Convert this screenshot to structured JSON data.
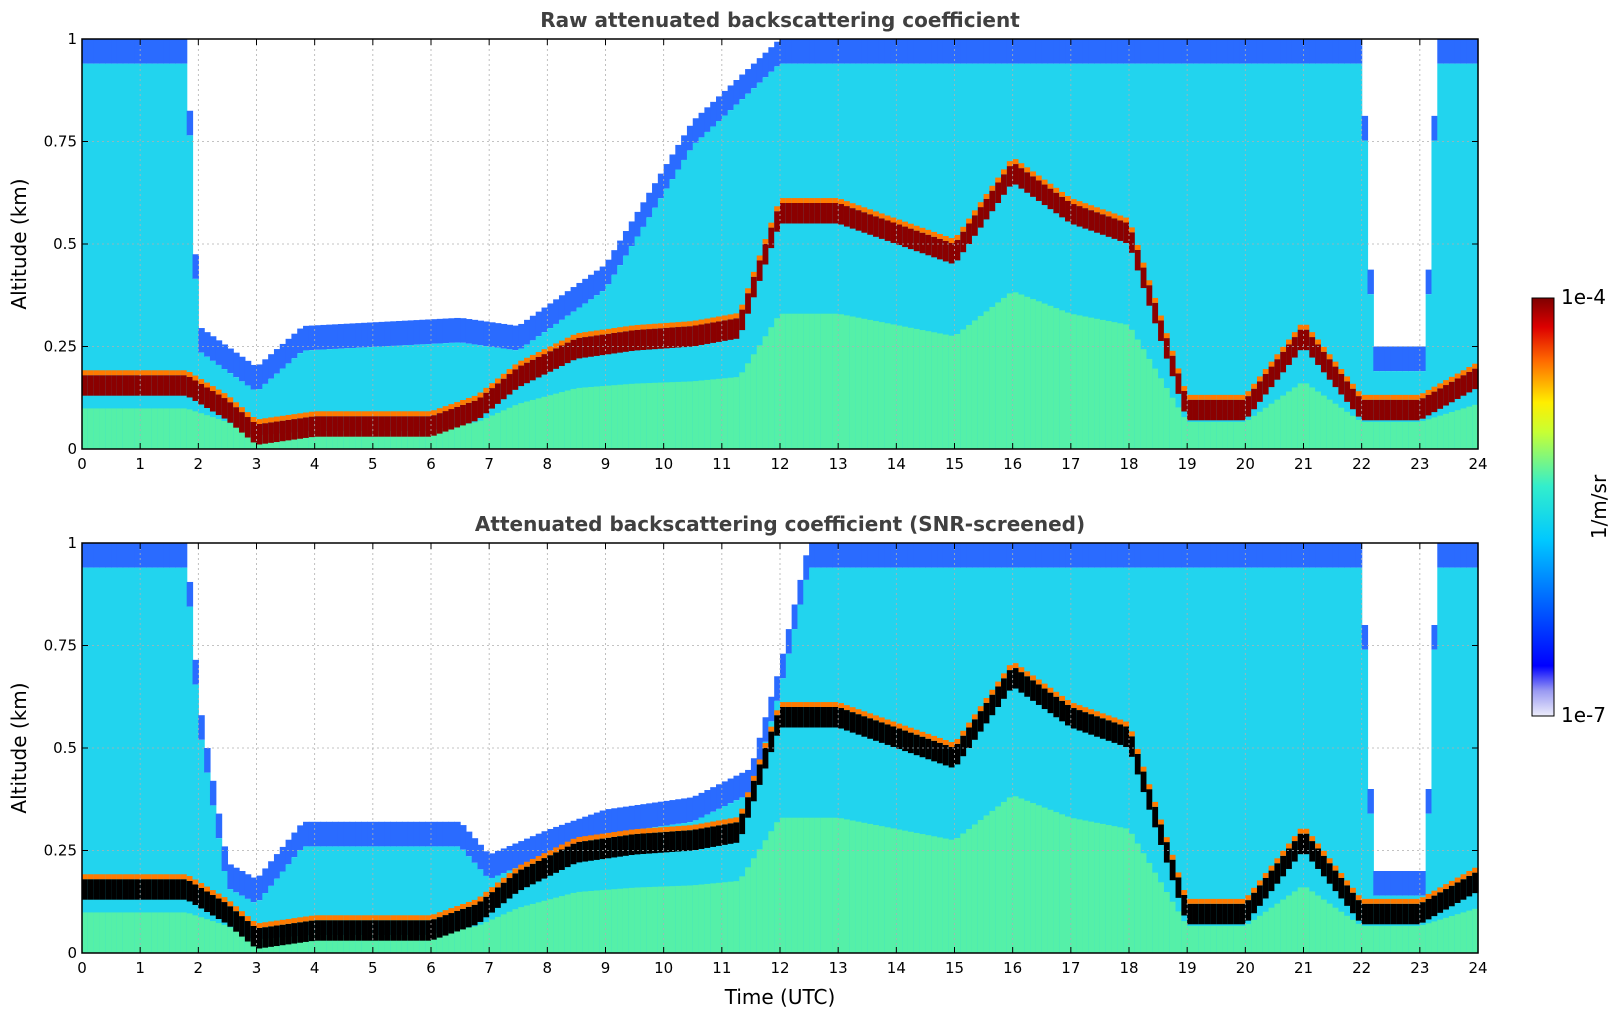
{
  "figure": {
    "colorbar": {
      "label": "1/m/sr",
      "max_label": "1e-4",
      "min_label": "1e-7",
      "scale": "log",
      "colormap": "jet",
      "range": [
        1e-07,
        0.0001
      ]
    },
    "shared_x_label": "Time (UTC)"
  },
  "chart_data": [
    {
      "type": "heatmap",
      "title": "Raw attenuated backscattering coefficient",
      "xlabel": "",
      "ylabel": "Altitude (km)",
      "xlim": [
        0,
        24
      ],
      "ylim": [
        0,
        1
      ],
      "x_ticks": [
        "0",
        "1",
        "2",
        "3",
        "4",
        "5",
        "6",
        "7",
        "8",
        "9",
        "10",
        "11",
        "12",
        "13",
        "14",
        "15",
        "16",
        "17",
        "18",
        "19",
        "20",
        "21",
        "22",
        "23",
        "24"
      ],
      "y_ticks": [
        "0",
        "0.25",
        "0.5",
        "0.75",
        "1"
      ],
      "grid": true,
      "layer_top_km": [
        [
          0,
          0.18
        ],
        [
          1.8,
          0.18
        ],
        [
          2.5,
          0.12
        ],
        [
          3.0,
          0.06
        ],
        [
          4.0,
          0.08
        ],
        [
          5.0,
          0.08
        ],
        [
          6.0,
          0.08
        ],
        [
          6.8,
          0.12
        ],
        [
          7.5,
          0.2
        ],
        [
          8.5,
          0.27
        ],
        [
          9.5,
          0.29
        ],
        [
          10.5,
          0.3
        ],
        [
          11.3,
          0.32
        ],
        [
          12.0,
          0.6
        ],
        [
          13.0,
          0.6
        ],
        [
          15.0,
          0.5
        ],
        [
          16.0,
          0.7
        ],
        [
          17.0,
          0.6
        ],
        [
          18.0,
          0.55
        ],
        [
          19.0,
          0.12
        ],
        [
          20.0,
          0.12
        ],
        [
          21.0,
          0.3
        ],
        [
          22.0,
          0.12
        ],
        [
          23.0,
          0.12
        ],
        [
          24.0,
          0.2
        ]
      ],
      "signal_top_km": [
        [
          0,
          1.0
        ],
        [
          1.8,
          1.0
        ],
        [
          2.0,
          0.3
        ],
        [
          3.0,
          0.2
        ],
        [
          3.8,
          0.3
        ],
        [
          6.5,
          0.32
        ],
        [
          7.5,
          0.3
        ],
        [
          9.0,
          0.45
        ],
        [
          10.5,
          0.8
        ],
        [
          12.0,
          1.0
        ],
        [
          22.0,
          1.0
        ],
        [
          22.2,
          0.25
        ],
        [
          23.1,
          0.25
        ],
        [
          23.3,
          1.0
        ],
        [
          24.0,
          1.0
        ]
      ]
    },
    {
      "type": "heatmap",
      "title": "Attenuated backscattering coefficient (SNR-screened)",
      "xlabel": "Time (UTC)",
      "ylabel": "Altitude (km)",
      "xlim": [
        0,
        24
      ],
      "ylim": [
        0,
        1
      ],
      "x_ticks": [
        "0",
        "1",
        "2",
        "3",
        "4",
        "5",
        "6",
        "7",
        "8",
        "9",
        "10",
        "11",
        "12",
        "13",
        "14",
        "15",
        "16",
        "17",
        "18",
        "19",
        "20",
        "21",
        "22",
        "23",
        "24"
      ],
      "y_ticks": [
        "0",
        "0.25",
        "0.5",
        "0.75",
        "1"
      ],
      "grid": true,
      "screened_top_km": [
        [
          0,
          1.0
        ],
        [
          1.8,
          1.0
        ],
        [
          2.0,
          0.62
        ],
        [
          2.5,
          0.22
        ],
        [
          3.0,
          0.18
        ],
        [
          3.8,
          0.32
        ],
        [
          6.5,
          0.32
        ],
        [
          7.0,
          0.24
        ],
        [
          8.0,
          0.3
        ],
        [
          9.0,
          0.35
        ],
        [
          10.5,
          0.38
        ],
        [
          11.5,
          0.45
        ],
        [
          12.0,
          0.7
        ],
        [
          12.5,
          1.0
        ],
        [
          22.0,
          1.0
        ],
        [
          22.2,
          0.2
        ],
        [
          23.1,
          0.2
        ],
        [
          23.3,
          1.0
        ],
        [
          24.0,
          1.0
        ]
      ]
    }
  ]
}
